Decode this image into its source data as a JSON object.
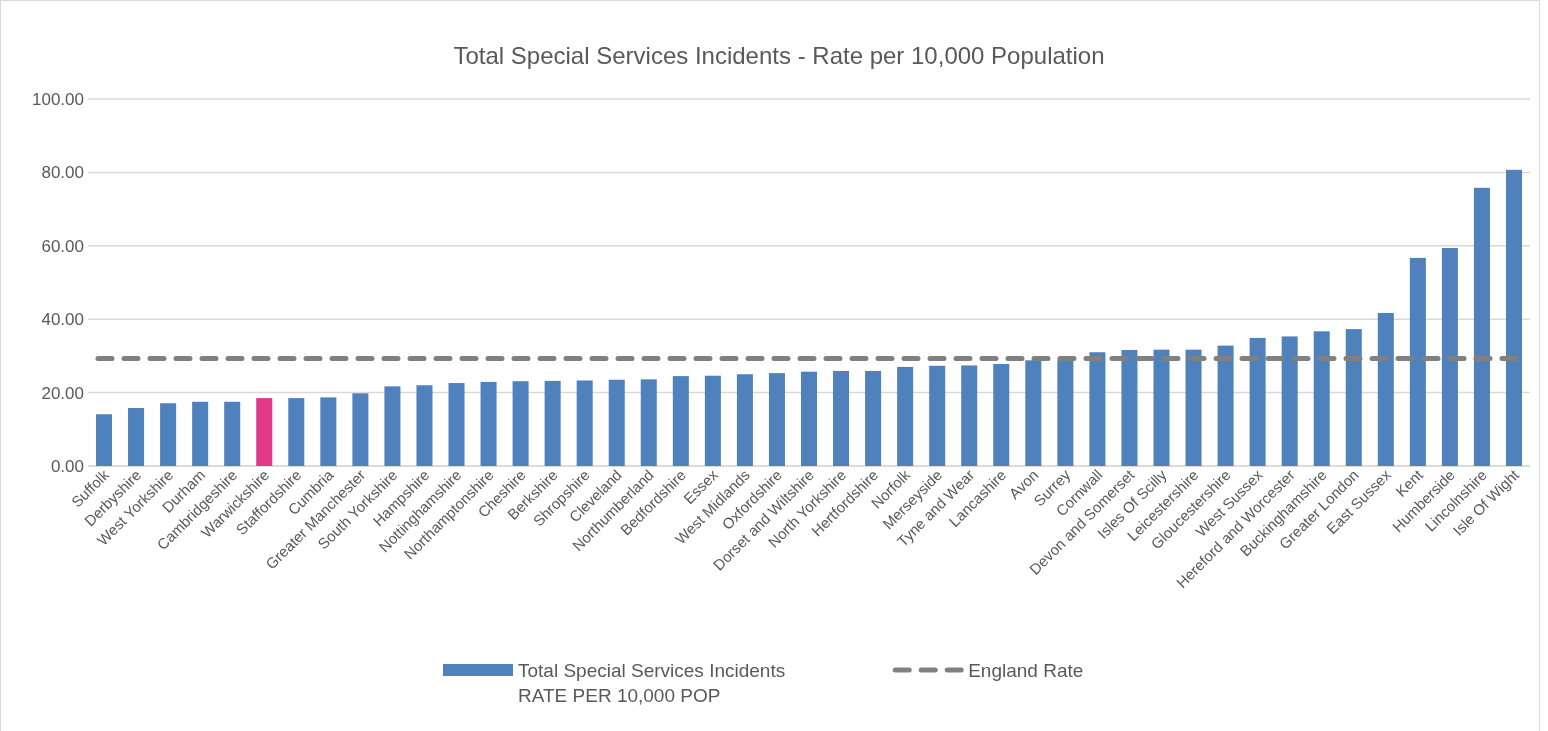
{
  "chart_data": {
    "type": "bar",
    "title": "Total Special Services Incidents - Rate per 10,000 Population",
    "categories": [
      "Suffolk",
      "Derbyshire",
      "West Yorkshire",
      "Durham",
      "Cambridgeshire",
      "Warwickshire",
      "Staffordshire",
      "Cumbria",
      "Greater Manchester",
      "South Yorkshire",
      "Hampshire",
      "Nottinghamshire",
      "Northamptonshire",
      "Cheshire",
      "Berkshire",
      "Shropshire",
      "Cleveland",
      "Northumberland",
      "Bedfordshire",
      "Essex",
      "West Midlands",
      "Oxfordshire",
      "Dorset and Wiltshire",
      "North Yorkshire",
      "Hertfordshire",
      "Norfolk",
      "Merseyside",
      "Tyne and Wear",
      "Lancashire",
      "Avon",
      "Surrey",
      "Cornwall",
      "Devon and Somerset",
      "Isles Of Scilly",
      "Leicestershire",
      "Gloucestershire",
      "West Sussex",
      "Hereford and Worcester",
      "Buckinghamshire",
      "Greater London",
      "East Sussex",
      "Kent",
      "Humberside",
      "Lincolnshire",
      "Isle Of Wight"
    ],
    "series": [
      {
        "name": "Total Special Services Incidents RATE PER 10,000 POP",
        "color": "#4f81bd",
        "colors": [
          "#4f81bd",
          "#4f81bd",
          "#4f81bd",
          "#4f81bd",
          "#4f81bd",
          "#e0388b",
          "#4f81bd",
          "#4f81bd",
          "#4f81bd",
          "#4f81bd",
          "#4f81bd",
          "#4f81bd",
          "#4f81bd",
          "#4f81bd",
          "#4f81bd",
          "#4f81bd",
          "#4f81bd",
          "#4f81bd",
          "#4f81bd",
          "#4f81bd",
          "#4f81bd",
          "#4f81bd",
          "#4f81bd",
          "#4f81bd",
          "#4f81bd",
          "#4f81bd",
          "#4f81bd",
          "#4f81bd",
          "#4f81bd",
          "#4f81bd",
          "#4f81bd",
          "#4f81bd",
          "#4f81bd",
          "#4f81bd",
          "#4f81bd",
          "#4f81bd",
          "#4f81bd",
          "#4f81bd",
          "#4f81bd",
          "#4f81bd",
          "#4f81bd",
          "#4f81bd",
          "#4f81bd",
          "#4f81bd",
          "#4f81bd"
        ],
        "values": [
          14.1,
          15.8,
          17.1,
          17.5,
          17.5,
          18.5,
          18.5,
          18.7,
          19.8,
          21.7,
          22.0,
          22.6,
          22.9,
          23.1,
          23.2,
          23.3,
          23.5,
          23.6,
          24.5,
          24.6,
          25.0,
          25.3,
          25.7,
          25.9,
          25.9,
          27.0,
          27.3,
          27.4,
          27.8,
          28.8,
          29.0,
          31.0,
          31.6,
          31.7,
          31.7,
          32.8,
          34.9,
          35.3,
          36.7,
          37.3,
          41.7,
          56.7,
          59.4,
          75.8,
          80.7
        ]
      }
    ],
    "ref_lines": [
      {
        "axis": "y",
        "value": 29.3,
        "label": "England Rate",
        "color": "#808080",
        "line_style": "dashed"
      }
    ],
    "ylim": [
      0,
      100
    ],
    "yticks": [
      {
        "value": 0,
        "label": "0.00"
      },
      {
        "value": 20,
        "label": "20.00"
      },
      {
        "value": 40,
        "label": "40.00"
      },
      {
        "value": 60,
        "label": "60.00"
      },
      {
        "value": 80,
        "label": "80.00"
      },
      {
        "value": 100,
        "label": "100.00"
      }
    ],
    "grid": "y",
    "legend": "bottom"
  }
}
